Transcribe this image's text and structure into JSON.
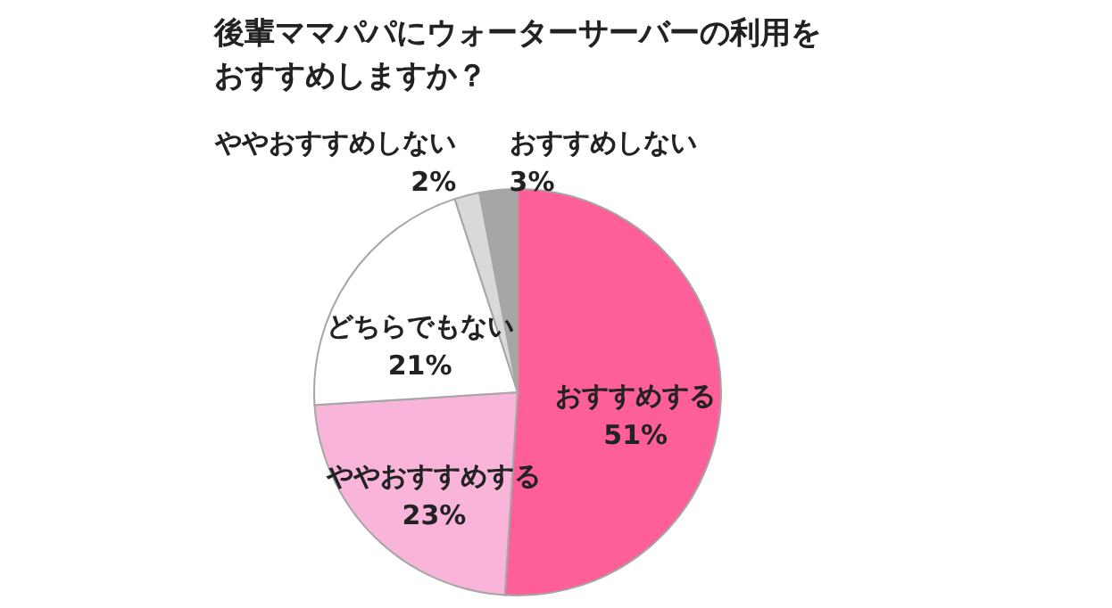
{
  "chart_data": {
    "type": "pie",
    "title": "後輩ママパパにウォーターサーバーの利用をおすすめしますか？",
    "categories": [
      "おすすめする",
      "ややおすすめする",
      "どちらでもない",
      "ややおすすめしない",
      "おすすめしない"
    ],
    "values": [
      51,
      23,
      21,
      2,
      3
    ],
    "value_labels": [
      "51%",
      "23%",
      "21%",
      "2%",
      "3%"
    ],
    "colors": [
      "#ff5f99",
      "#f9b4da",
      "#ffffff",
      "#d9d9d9",
      "#a6a6a6"
    ]
  }
}
